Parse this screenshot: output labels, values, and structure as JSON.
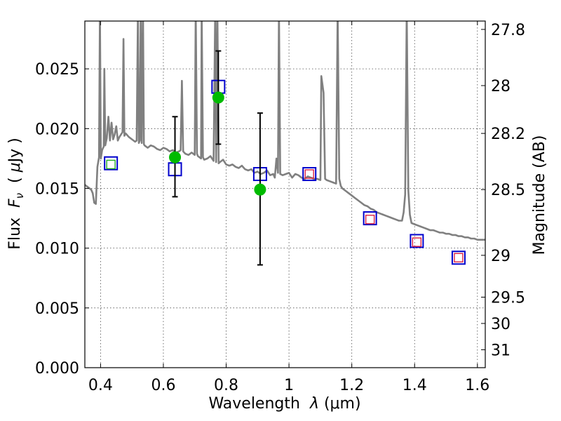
{
  "chart_data": {
    "type": "scatter",
    "title": "",
    "xlabel": "Wavelength  λ (μm)",
    "ylabel": "Flux  F_ν  ( μJy )",
    "ylabel_parts": {
      "prefix": "Flux  ",
      "symbol": "F",
      "sub": "ν",
      "unit_open": "  ( ",
      "mu": "μ",
      "unit_rest": "Jy )"
    },
    "xlabel_parts": {
      "prefix": "Wavelength  ",
      "symbol": "λ",
      "unit": " (μm)"
    },
    "y2label": "Magnitude (AB)",
    "xlim": [
      0.35,
      1.625
    ],
    "ylim": [
      0.0,
      0.029
    ],
    "grid": true,
    "x_ticks": [
      0.4,
      0.6,
      0.8,
      1.0,
      1.2,
      1.4,
      1.6
    ],
    "x_tick_labels": [
      "0.4",
      "0.6",
      "0.8",
      "1",
      "1.2",
      "1.4",
      "1.6"
    ],
    "y_ticks": [
      0.0,
      0.005,
      0.01,
      0.015,
      0.02,
      0.025
    ],
    "y_tick_labels": [
      "0.000",
      "0.005",
      "0.010",
      "0.015",
      "0.020",
      "0.025"
    ],
    "y2_tick_flux": [
      0.0283,
      0.0236,
      0.0196,
      0.0149,
      0.0094,
      0.0059,
      0.0037,
      0.0015
    ],
    "y2_tick_labels": [
      "27.8",
      "28",
      "28.2",
      "28.5",
      "29",
      "29.5",
      "30",
      "31"
    ],
    "colors": {
      "spectrum": "#808080",
      "observed": "#00bb00",
      "model_box": "#0000cc",
      "red_box": "#dd2244",
      "green_box": "#22aa22",
      "errorbar": "#000000"
    },
    "series": [
      {
        "kind": "spectrum",
        "points": [
          [
            0.35,
            0.0153
          ],
          [
            0.36,
            0.0151
          ],
          [
            0.37,
            0.0149
          ],
          [
            0.375,
            0.0146
          ],
          [
            0.38,
            0.0138
          ],
          [
            0.385,
            0.0137
          ],
          [
            0.39,
            0.0168
          ],
          [
            0.395,
            0.0176
          ],
          [
            0.398,
            0.03
          ],
          [
            0.401,
            0.0175
          ],
          [
            0.405,
            0.0182
          ],
          [
            0.41,
            0.0185
          ],
          [
            0.412,
            0.025
          ],
          [
            0.415,
            0.0186
          ],
          [
            0.42,
            0.0192
          ],
          [
            0.425,
            0.021
          ],
          [
            0.43,
            0.019
          ],
          [
            0.435,
            0.0205
          ],
          [
            0.44,
            0.0191
          ],
          [
            0.445,
            0.0195
          ],
          [
            0.45,
            0.0202
          ],
          [
            0.455,
            0.019
          ],
          [
            0.46,
            0.0193
          ],
          [
            0.465,
            0.0195
          ],
          [
            0.47,
            0.0197
          ],
          [
            0.473,
            0.0275
          ],
          [
            0.476,
            0.0194
          ],
          [
            0.48,
            0.0196
          ],
          [
            0.49,
            0.0193
          ],
          [
            0.5,
            0.0191
          ],
          [
            0.51,
            0.0189
          ],
          [
            0.515,
            0.019
          ],
          [
            0.519,
            0.03
          ],
          [
            0.522,
            0.0188
          ],
          [
            0.525,
            0.019
          ],
          [
            0.528,
            0.03
          ],
          [
            0.531,
            0.0188
          ],
          [
            0.535,
            0.03
          ],
          [
            0.538,
            0.0187
          ],
          [
            0.54,
            0.0186
          ],
          [
            0.55,
            0.0184
          ],
          [
            0.56,
            0.0186
          ],
          [
            0.57,
            0.0185
          ],
          [
            0.58,
            0.0183
          ],
          [
            0.59,
            0.0182
          ],
          [
            0.6,
            0.0184
          ],
          [
            0.61,
            0.0183
          ],
          [
            0.62,
            0.0181
          ],
          [
            0.63,
            0.0182
          ],
          [
            0.64,
            0.018
          ],
          [
            0.65,
            0.0181
          ],
          [
            0.655,
            0.0182
          ],
          [
            0.659,
            0.024
          ],
          [
            0.663,
            0.0181
          ],
          [
            0.67,
            0.0179
          ],
          [
            0.68,
            0.0178
          ],
          [
            0.69,
            0.018
          ],
          [
            0.7,
            0.0178
          ],
          [
            0.703,
            0.03
          ],
          [
            0.707,
            0.0179
          ],
          [
            0.71,
            0.0177
          ],
          [
            0.72,
            0.0175
          ],
          [
            0.722,
            0.03
          ],
          [
            0.726,
            0.0176
          ],
          [
            0.73,
            0.0174
          ],
          [
            0.74,
            0.0175
          ],
          [
            0.75,
            0.0177
          ],
          [
            0.76,
            0.0173
          ],
          [
            0.765,
            0.03
          ],
          [
            0.768,
            0.0172
          ],
          [
            0.772,
            0.03
          ],
          [
            0.776,
            0.0171
          ],
          [
            0.78,
            0.0172
          ],
          [
            0.79,
            0.0174
          ],
          [
            0.8,
            0.017
          ],
          [
            0.81,
            0.0169
          ],
          [
            0.82,
            0.017
          ],
          [
            0.83,
            0.0168
          ],
          [
            0.84,
            0.0167
          ],
          [
            0.85,
            0.0169
          ],
          [
            0.86,
            0.0166
          ],
          [
            0.87,
            0.0165
          ],
          [
            0.88,
            0.0166
          ],
          [
            0.89,
            0.0163
          ],
          [
            0.9,
            0.0164
          ],
          [
            0.91,
            0.0162
          ],
          [
            0.92,
            0.0163
          ],
          [
            0.93,
            0.0165
          ],
          [
            0.94,
            0.0161
          ],
          [
            0.95,
            0.0162
          ],
          [
            0.955,
            0.0159
          ],
          [
            0.96,
            0.0175
          ],
          [
            0.965,
            0.0163
          ],
          [
            0.968,
            0.03
          ],
          [
            0.972,
            0.0162
          ],
          [
            0.98,
            0.0161
          ],
          [
            0.99,
            0.0162
          ],
          [
            1.0,
            0.0163
          ],
          [
            1.01,
            0.0159
          ],
          [
            1.02,
            0.0162
          ],
          [
            1.03,
            0.0161
          ],
          [
            1.04,
            0.0159
          ],
          [
            1.05,
            0.0158
          ],
          [
            1.06,
            0.016
          ],
          [
            1.07,
            0.0159
          ],
          [
            1.08,
            0.0158
          ],
          [
            1.09,
            0.0158
          ],
          [
            1.1,
            0.0157
          ],
          [
            1.103,
            0.0244
          ],
          [
            1.11,
            0.023
          ],
          [
            1.115,
            0.0158
          ],
          [
            1.12,
            0.0157
          ],
          [
            1.13,
            0.0156
          ],
          [
            1.14,
            0.0155
          ],
          [
            1.15,
            0.0154
          ],
          [
            1.155,
            0.03
          ],
          [
            1.16,
            0.0158
          ],
          [
            1.165,
            0.0152
          ],
          [
            1.17,
            0.015
          ],
          [
            1.18,
            0.0148
          ],
          [
            1.19,
            0.0146
          ],
          [
            1.2,
            0.0144
          ],
          [
            1.21,
            0.0142
          ],
          [
            1.22,
            0.014
          ],
          [
            1.23,
            0.0138
          ],
          [
            1.24,
            0.0136
          ],
          [
            1.25,
            0.0135
          ],
          [
            1.26,
            0.0133
          ],
          [
            1.27,
            0.0132
          ],
          [
            1.28,
            0.013
          ],
          [
            1.29,
            0.0129
          ],
          [
            1.3,
            0.0128
          ],
          [
            1.31,
            0.0127
          ],
          [
            1.32,
            0.0126
          ],
          [
            1.33,
            0.0125
          ],
          [
            1.34,
            0.0124
          ],
          [
            1.35,
            0.0123
          ],
          [
            1.36,
            0.0123
          ],
          [
            1.365,
            0.013
          ],
          [
            1.37,
            0.0145
          ],
          [
            1.375,
            0.03
          ],
          [
            1.38,
            0.0148
          ],
          [
            1.385,
            0.0128
          ],
          [
            1.39,
            0.0121
          ],
          [
            1.4,
            0.012
          ],
          [
            1.41,
            0.0119
          ],
          [
            1.42,
            0.0118
          ],
          [
            1.43,
            0.0117
          ],
          [
            1.44,
            0.0116
          ],
          [
            1.45,
            0.0115
          ],
          [
            1.46,
            0.0115
          ],
          [
            1.47,
            0.0114
          ],
          [
            1.48,
            0.0113
          ],
          [
            1.49,
            0.0113
          ],
          [
            1.5,
            0.0112
          ],
          [
            1.51,
            0.0112
          ],
          [
            1.52,
            0.0111
          ],
          [
            1.53,
            0.0111
          ],
          [
            1.54,
            0.011
          ],
          [
            1.55,
            0.011
          ],
          [
            1.56,
            0.0109
          ],
          [
            1.57,
            0.0109
          ],
          [
            1.58,
            0.0108
          ],
          [
            1.59,
            0.0108
          ],
          [
            1.6,
            0.0107
          ],
          [
            1.61,
            0.0107
          ],
          [
            1.625,
            0.0107
          ]
        ]
      },
      {
        "kind": "observed",
        "points": [
          {
            "x": 0.637,
            "y": 0.0176,
            "yerr_low": 0.0143,
            "yerr_high": 0.021
          },
          {
            "x": 0.775,
            "y": 0.0226,
            "yerr_low": 0.0187,
            "yerr_high": 0.0265
          },
          {
            "x": 0.908,
            "y": 0.0149,
            "yerr_low": 0.0086,
            "yerr_high": 0.0213
          }
        ]
      },
      {
        "kind": "model_box",
        "points": [
          {
            "x": 0.433,
            "y": 0.0171
          },
          {
            "x": 0.637,
            "y": 0.0166
          },
          {
            "x": 0.775,
            "y": 0.0235
          },
          {
            "x": 0.908,
            "y": 0.0162
          },
          {
            "x": 1.065,
            "y": 0.0162
          },
          {
            "x": 1.258,
            "y": 0.0125
          },
          {
            "x": 1.407,
            "y": 0.0106
          },
          {
            "x": 1.54,
            "y": 0.0092
          }
        ]
      },
      {
        "kind": "red_box",
        "points": [
          {
            "x": 1.065,
            "y": 0.0162
          },
          {
            "x": 1.258,
            "y": 0.0124
          },
          {
            "x": 1.407,
            "y": 0.0105
          },
          {
            "x": 1.54,
            "y": 0.0092
          }
        ]
      },
      {
        "kind": "green_box",
        "points": [
          {
            "x": 0.433,
            "y": 0.017
          }
        ]
      }
    ]
  }
}
